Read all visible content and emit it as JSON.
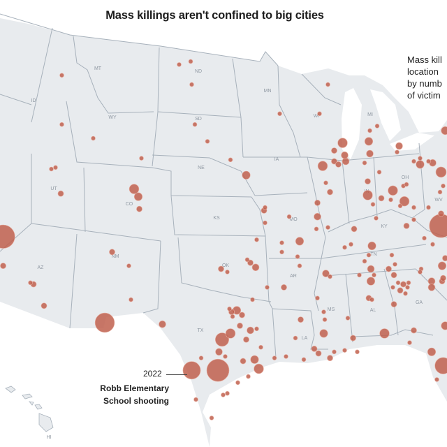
{
  "title": "Mass killings aren't confined to big cities",
  "legend": {
    "lines": [
      "Mass kill",
      "location",
      "by numb",
      "of victim"
    ]
  },
  "annotation": {
    "year": "2022",
    "line1": "Robb Elementary",
    "line2": "School shooting"
  },
  "colors": {
    "land": "#e8ebee",
    "border": "#a7b1bb",
    "dot": "#c0604e",
    "water": "#ffffff"
  },
  "state_labels": [
    {
      "id": "MT",
      "label": "MT"
    },
    {
      "id": "ND",
      "label": "ND"
    },
    {
      "id": "MN",
      "label": "MN"
    },
    {
      "id": "ID",
      "label": "ID"
    },
    {
      "id": "WY",
      "label": "WY"
    },
    {
      "id": "SD",
      "label": "SD"
    },
    {
      "id": "WI",
      "label": "WI"
    },
    {
      "id": "MI",
      "label": "MI"
    },
    {
      "id": "IA",
      "label": "IA"
    },
    {
      "id": "NE",
      "label": "NE"
    },
    {
      "id": "UT",
      "label": "UT"
    },
    {
      "id": "CO",
      "label": "CO"
    },
    {
      "id": "IN",
      "label": "IN"
    },
    {
      "id": "OH",
      "label": "OH"
    },
    {
      "id": "KS",
      "label": "KS"
    },
    {
      "id": "MO",
      "label": "MO"
    },
    {
      "id": "KY",
      "label": "KY"
    },
    {
      "id": "WV",
      "label": "WV"
    },
    {
      "id": "AZ",
      "label": "AZ"
    },
    {
      "id": "NM",
      "label": "NM"
    },
    {
      "id": "OK",
      "label": "OK"
    },
    {
      "id": "AR",
      "label": "AR"
    },
    {
      "id": "TN",
      "label": "TN"
    },
    {
      "id": "MS",
      "label": "MS"
    },
    {
      "id": "AL",
      "label": "AL"
    },
    {
      "id": "GA",
      "label": "GA"
    },
    {
      "id": "TX",
      "label": "TX"
    },
    {
      "id": "LA",
      "label": "LA"
    },
    {
      "id": "HI",
      "label": "HI"
    }
  ],
  "events": [
    [
      -102.9,
      50.8,
      4
    ],
    [
      -101.8,
      51.0,
      4
    ],
    [
      -101.7,
      49.5,
      4
    ],
    [
      -114.1,
      50.1,
      4
    ],
    [
      -114.1,
      46.9,
      4
    ],
    [
      -111.1,
      46.0,
      4
    ],
    [
      -106.5,
      44.7,
      4
    ],
    [
      -101.4,
      46.9,
      4
    ],
    [
      -100.2,
      45.8,
      4
    ],
    [
      -115.1,
      44.0,
      4
    ],
    [
      -114.7,
      44.1,
      4
    ],
    [
      -114.2,
      42.4,
      6
    ],
    [
      -107.2,
      42.7,
      13
    ],
    [
      -106.8,
      42.2,
      10
    ],
    [
      -106.7,
      41.4,
      6
    ],
    [
      -96.5,
      43.6,
      10
    ],
    [
      -93.3,
      47.6,
      4
    ],
    [
      -89.5,
      47.6,
      4
    ],
    [
      -88.7,
      49.5,
      4
    ],
    [
      -87.3,
      45.7,
      13
    ],
    [
      -88.1,
      45.2,
      6
    ],
    [
      -89.2,
      44.2,
      13
    ],
    [
      -87.0,
      44.5,
      8
    ],
    [
      -88.1,
      44.5,
      6
    ],
    [
      -87.7,
      44.3,
      6
    ],
    [
      -87.1,
      44.9,
      8
    ],
    [
      -88.9,
      43.1,
      4
    ],
    [
      -88.5,
      42.5,
      6
    ],
    [
      -89.7,
      41.8,
      6
    ],
    [
      -89.7,
      40.9,
      8
    ],
    [
      -89.8,
      40.1,
      4
    ],
    [
      -88.7,
      40.2,
      4
    ],
    [
      -86.2,
      40.1,
      6
    ],
    [
      -84.8,
      45.8,
      10
    ],
    [
      -84.7,
      45.0,
      8
    ],
    [
      -84.7,
      46.5,
      4
    ],
    [
      -84.0,
      46.8,
      4
    ],
    [
      -81.9,
      45.5,
      8
    ],
    [
      -82.1,
      45.1,
      4
    ],
    [
      -84.9,
      43.2,
      6
    ],
    [
      -84.9,
      42.3,
      13
    ],
    [
      -83.6,
      42.1,
      6
    ],
    [
      -84.4,
      41.7,
      4
    ],
    [
      -84.1,
      40.8,
      4
    ],
    [
      -83.8,
      43.8,
      4
    ],
    [
      -82.5,
      42.6,
      13
    ],
    [
      -82.7,
      42.0,
      4
    ],
    [
      -81.4,
      41.9,
      13
    ],
    [
      -81.5,
      42.9,
      4
    ],
    [
      -81.2,
      43.0,
      4
    ],
    [
      -81.8,
      41.6,
      4
    ],
    [
      -80.5,
      41.5,
      4
    ],
    [
      -81.2,
      40.3,
      6
    ],
    [
      -80.5,
      40.7,
      4
    ],
    [
      -79.9,
      44.3,
      10
    ],
    [
      -80.5,
      44.5,
      4
    ],
    [
      -79.9,
      44.7,
      4
    ],
    [
      -79.1,
      44.5,
      4
    ],
    [
      -78.7,
      44.4,
      8
    ],
    [
      -77.9,
      43.8,
      15
    ],
    [
      -77.7,
      42.9,
      4
    ],
    [
      -78.0,
      42.5,
      4
    ],
    [
      -79.1,
      41.5,
      4
    ],
    [
      -77.9,
      41.1,
      6
    ],
    [
      -77.9,
      40.3,
      60
    ],
    [
      -85.2,
      44.4,
      4
    ],
    [
      -77.5,
      46.5,
      10
    ],
    [
      -84.5,
      39.0,
      10
    ],
    [
      -86.5,
      39.1,
      4
    ],
    [
      -87.1,
      38.9,
      4
    ],
    [
      -79.5,
      39.5,
      4
    ],
    [
      -78.7,
      39.1,
      4
    ],
    [
      -95.5,
      39.4,
      4
    ],
    [
      -93.1,
      39.2,
      4
    ],
    [
      -91.4,
      39.3,
      10
    ],
    [
      -91.6,
      38.3,
      4
    ],
    [
      -91.4,
      37.7,
      4
    ],
    [
      -96.4,
      38.1,
      4
    ],
    [
      -96.1,
      37.9,
      6
    ],
    [
      -95.6,
      37.6,
      8
    ],
    [
      -98.9,
      37.5,
      6
    ],
    [
      -98.3,
      37.3,
      4
    ],
    [
      -94.5,
      36.3,
      4
    ],
    [
      -92.9,
      36.3,
      6
    ],
    [
      -95.9,
      35.5,
      4
    ],
    [
      -97.4,
      34.8,
      10
    ],
    [
      -97.9,
      34.7,
      6
    ],
    [
      -97.8,
      34.4,
      4
    ],
    [
      -98.1,
      34.9,
      4
    ],
    [
      -96.9,
      34.5,
      6
    ],
    [
      -97.1,
      33.8,
      6
    ],
    [
      -96.1,
      33.5,
      8
    ],
    [
      -95.5,
      33.6,
      4
    ],
    [
      -98.0,
      33.3,
      13
    ],
    [
      -98.8,
      32.9,
      23
    ],
    [
      -96.5,
      32.9,
      6
    ],
    [
      -99.1,
      32.1,
      8
    ],
    [
      -98.5,
      31.8,
      4
    ],
    [
      -100.8,
      31.7,
      4
    ],
    [
      -95.1,
      32.4,
      4
    ],
    [
      -96.8,
      31.5,
      6
    ],
    [
      -95.7,
      31.6,
      10
    ],
    [
      -95.3,
      31.0,
      13
    ],
    [
      -93.8,
      31.7,
      4
    ],
    [
      -101.7,
      30.9,
      36
    ],
    [
      -99.2,
      30.9,
      55
    ],
    [
      -89.7,
      35.6,
      4
    ],
    [
      -91.3,
      34.2,
      6
    ],
    [
      -91.8,
      33.0,
      4
    ],
    [
      -92.7,
      31.8,
      4
    ],
    [
      -91.0,
      31.6,
      4
    ],
    [
      -88.9,
      37.2,
      8
    ],
    [
      -88.5,
      37.0,
      4
    ],
    [
      -84.8,
      38.4,
      4
    ],
    [
      -85.2,
      38.0,
      4
    ],
    [
      -84.6,
      37.5,
      8
    ],
    [
      -84.3,
      37.1,
      4
    ],
    [
      -85.7,
      37.1,
      4
    ],
    [
      -84.6,
      36.7,
      10
    ],
    [
      -82.6,
      38.4,
      4
    ],
    [
      -82.3,
      37.8,
      4
    ],
    [
      -82.9,
      37.5,
      6
    ],
    [
      -82.4,
      37.1,
      6
    ],
    [
      -82.0,
      36.6,
      4
    ],
    [
      -81.5,
      36.5,
      6
    ],
    [
      -81.0,
      36.6,
      4
    ],
    [
      -81.8,
      36.1,
      6
    ],
    [
      -81.3,
      35.9,
      4
    ],
    [
      -82.5,
      36.3,
      4
    ],
    [
      -81.1,
      36.3,
      4
    ],
    [
      -84.8,
      35.6,
      6
    ],
    [
      -84.5,
      35.5,
      4
    ],
    [
      -82.4,
      35.2,
      6
    ],
    [
      -89.1,
      34.7,
      4
    ],
    [
      -89.0,
      34.2,
      4
    ],
    [
      -86.8,
      34.3,
      4
    ],
    [
      -89.1,
      33.3,
      10
    ],
    [
      -86.3,
      33.0,
      6
    ],
    [
      -83.3,
      33.3,
      13
    ],
    [
      -80.5,
      33.5,
      6
    ],
    [
      -80.9,
      32.7,
      4
    ],
    [
      -78.8,
      32.1,
      10
    ],
    [
      -90.0,
      32.3,
      6
    ],
    [
      -89.6,
      32.0,
      6
    ],
    [
      -88.5,
      31.7,
      6
    ],
    [
      -88.1,
      32.1,
      4
    ],
    [
      -87.1,
      32.2,
      4
    ],
    [
      -85.9,
      32.1,
      4
    ],
    [
      -77.5,
      33.8,
      10
    ],
    [
      -77.7,
      31.2,
      32
    ],
    [
      -78.3,
      30.3,
      4
    ],
    [
      -79.8,
      37.5,
      4
    ],
    [
      -79.9,
      37.3,
      4
    ],
    [
      -78.8,
      36.7,
      8
    ],
    [
      -78.8,
      36.3,
      8
    ],
    [
      -77.8,
      36.7,
      6
    ],
    [
      -77.7,
      36.9,
      6
    ],
    [
      -77.8,
      37.7,
      10
    ],
    [
      -77.5,
      38.2,
      6
    ],
    [
      -109.3,
      38.6,
      6
    ],
    [
      -107.5,
      35.5,
      4
    ],
    [
      -107.7,
      37.7,
      4
    ],
    [
      -116.8,
      36.5,
      6
    ],
    [
      -117.1,
      36.6,
      4
    ],
    [
      -115.8,
      35.1,
      6
    ],
    [
      -119.7,
      39.6,
      60
    ],
    [
      -119.7,
      37.7,
      6
    ],
    [
      -110.0,
      34.0,
      43
    ],
    [
      -104.5,
      33.9,
      8
    ],
    [
      -101.3,
      29.0,
      4
    ],
    [
      -99.8,
      27.8,
      4
    ],
    [
      -97.3,
      30.1,
      4
    ],
    [
      -96.3,
      30.5,
      4
    ],
    [
      -98.7,
      29.3,
      4
    ],
    [
      -98.3,
      29.4,
      4
    ],
    [
      -94.7,
      41.5,
      4
    ],
    [
      -94.8,
      41.3,
      6
    ],
    [
      -94.7,
      40.5,
      4
    ],
    [
      -92.4,
      40.9,
      4
    ],
    [
      -93.1,
      38.6,
      4
    ],
    [
      -98.0,
      44.6,
      4
    ]
  ]
}
